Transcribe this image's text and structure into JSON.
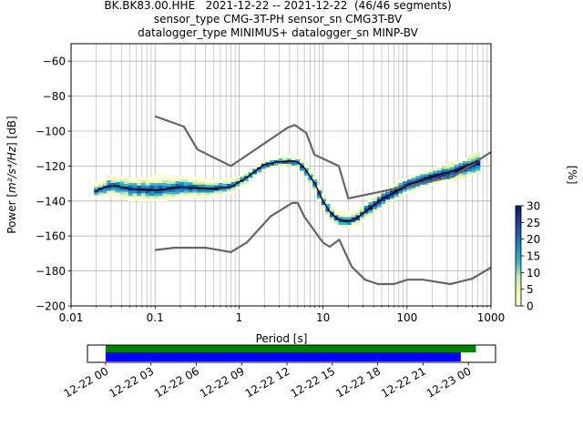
{
  "header": {
    "title_line1": "BK.BK83.00.HHE   2021-12-22 -- 2021-12-22  (46/46 segments)",
    "title_line2": "sensor_type CMG-3T-PH sensor_sn CMG3T-BV",
    "title_line3": "datalogger_type MINIMUS+ datalogger_sn MINP-BV"
  },
  "chart_data": [
    {
      "type": "heatmap",
      "title": "BK.BK83.00.HHE   2021-12-22 -- 2021-12-22  (46/46 segments)",
      "xlabel": "Period [s]",
      "ylabel": "Power [m²/s⁴/Hz] [dB]",
      "xscale": "log",
      "xlim": [
        0.01,
        1000
      ],
      "ylim": [
        -200,
        -50
      ],
      "xticks": [
        0.01,
        0.1,
        1,
        10,
        100,
        1000
      ],
      "xtick_labels": [
        "0.01",
        "0.1",
        "1",
        "10",
        "100",
        "1000"
      ],
      "yticks": [
        -60,
        -80,
        -100,
        -120,
        -140,
        -160,
        -180,
        -200
      ],
      "ytick_labels": [
        "−60",
        "−80",
        "−100",
        "−120",
        "−140",
        "−160",
        "−180",
        "−200"
      ],
      "grid": true,
      "colorbar": {
        "label": "[%]",
        "min": 0,
        "max": 30,
        "ticks": [
          0,
          5,
          10,
          15,
          20,
          25,
          30
        ],
        "tick_labels": [
          "0",
          "5",
          "10",
          "15",
          "20",
          "25",
          "30"
        ],
        "colormap": [
          "#ffffd9",
          "#edf8b1",
          "#c7e9b4",
          "#41b6c4",
          "#1d91c0",
          "#225ea8",
          "#253494",
          "#081d58"
        ]
      },
      "series": [
        {
          "role": "NHNM",
          "color": "#666666",
          "x": [
            0.1,
            0.22,
            0.32,
            0.8,
            3.8,
            4.6,
            6.3,
            7.9,
            15.4,
            20,
            354.8,
            1000
          ],
          "y": [
            -91.5,
            -97.4,
            -110.5,
            -120,
            -98,
            -96.5,
            -101,
            -113.5,
            -120,
            -138.5,
            -126,
            -112
          ]
        },
        {
          "role": "NLNM",
          "color": "#666666",
          "x": [
            0.1,
            0.17,
            0.4,
            0.8,
            1.24,
            2.4,
            4.3,
            5,
            6,
            10,
            12,
            15.6,
            21.9,
            31.6,
            45,
            70,
            101,
            154,
            328,
            600,
            1000
          ],
          "y": [
            -168,
            -166.7,
            -166.7,
            -169.2,
            -163.7,
            -148.6,
            -141.1,
            -141.1,
            -149,
            -163.8,
            -166.2,
            -162.1,
            -177.5,
            -185,
            -187.5,
            -187.5,
            -185,
            -185,
            -187.5,
            -184.4,
            -178
          ]
        },
        {
          "role": "mean",
          "color": "#000000",
          "x": [
            0.02,
            0.03,
            0.05,
            0.1,
            0.2,
            0.5,
            0.8,
            1.2,
            2,
            3,
            4,
            5,
            6,
            8,
            10,
            12,
            15,
            20,
            25,
            30,
            50,
            100,
            200,
            400,
            700
          ],
          "y": [
            -134,
            -131,
            -133,
            -134,
            -132,
            -133,
            -132,
            -127,
            -119,
            -117.5,
            -117,
            -117.5,
            -121,
            -130,
            -140,
            -146,
            -150.5,
            -151.5,
            -150,
            -147,
            -139,
            -131,
            -126,
            -122,
            -117
          ]
        },
        {
          "role": "ppsd-band",
          "x": [
            0.02,
            0.03,
            0.05,
            0.1,
            0.2,
            0.5,
            0.8,
            1.2,
            2,
            3,
            4,
            5,
            6,
            8,
            10,
            12,
            15,
            20,
            25,
            30,
            50,
            100,
            200,
            400,
            700
          ],
          "y_low": [
            -138,
            -136,
            -139,
            -140,
            -138,
            -137,
            -135,
            -130,
            -122,
            -120,
            -120,
            -121,
            -125,
            -134,
            -144,
            -150,
            -154,
            -155,
            -154,
            -151,
            -143,
            -135,
            -130,
            -127,
            -124
          ],
          "y_high": [
            -130,
            -126,
            -127,
            -127,
            -126,
            -129,
            -128,
            -124,
            -117,
            -115,
            -115,
            -115,
            -118,
            -126,
            -136,
            -142,
            -147,
            -148,
            -146,
            -143,
            -135,
            -127,
            -122,
            -118,
            -113
          ]
        }
      ]
    },
    {
      "type": "bar",
      "role": "data-availability",
      "x_tick_labels": [
        "12-22 00",
        "12-22 03",
        "12-22 06",
        "12-22 09",
        "12-22 12",
        "12-22 15",
        "12-22 18",
        "12-22 21",
        "12-23 00"
      ],
      "bars": [
        {
          "color": "#008000",
          "start_hours": 0,
          "end_hours": 24.5
        },
        {
          "color": "#0000ff",
          "start_hours": 0,
          "end_hours": 23.5
        }
      ],
      "xlim_hours": [
        -1.2,
        25.8
      ]
    }
  ],
  "labels": {
    "xlabel": "Period [s]",
    "ylabel_prefix": "Power [",
    "ylabel_unit": "m²/s⁴/Hz",
    "ylabel_suffix": "] [dB]",
    "colorbar_label": "[%]"
  }
}
